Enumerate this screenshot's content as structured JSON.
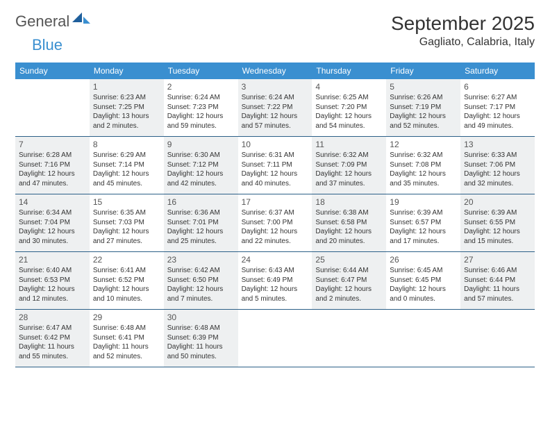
{
  "logo": {
    "text_general": "General",
    "text_blue": "Blue"
  },
  "title": {
    "month_year": "September 2025",
    "location": "Gagliato, Calabria, Italy"
  },
  "colors": {
    "header_bg": "#3a8fd0",
    "header_text": "#ffffff",
    "row_divider": "#2b5f87",
    "shaded_cell": "#eef0f1",
    "body_text": "#333333",
    "page_bg": "#ffffff"
  },
  "weekdays": [
    "Sunday",
    "Monday",
    "Tuesday",
    "Wednesday",
    "Thursday",
    "Friday",
    "Saturday"
  ],
  "weeks": [
    [
      {
        "day": "",
        "sunrise": "",
        "sunset": "",
        "daylight1": "",
        "daylight2": "",
        "shaded": false,
        "empty": true
      },
      {
        "day": "1",
        "sunrise": "Sunrise: 6:23 AM",
        "sunset": "Sunset: 7:25 PM",
        "daylight1": "Daylight: 13 hours",
        "daylight2": "and 2 minutes.",
        "shaded": true
      },
      {
        "day": "2",
        "sunrise": "Sunrise: 6:24 AM",
        "sunset": "Sunset: 7:23 PM",
        "daylight1": "Daylight: 12 hours",
        "daylight2": "and 59 minutes.",
        "shaded": false
      },
      {
        "day": "3",
        "sunrise": "Sunrise: 6:24 AM",
        "sunset": "Sunset: 7:22 PM",
        "daylight1": "Daylight: 12 hours",
        "daylight2": "and 57 minutes.",
        "shaded": true
      },
      {
        "day": "4",
        "sunrise": "Sunrise: 6:25 AM",
        "sunset": "Sunset: 7:20 PM",
        "daylight1": "Daylight: 12 hours",
        "daylight2": "and 54 minutes.",
        "shaded": false
      },
      {
        "day": "5",
        "sunrise": "Sunrise: 6:26 AM",
        "sunset": "Sunset: 7:19 PM",
        "daylight1": "Daylight: 12 hours",
        "daylight2": "and 52 minutes.",
        "shaded": true
      },
      {
        "day": "6",
        "sunrise": "Sunrise: 6:27 AM",
        "sunset": "Sunset: 7:17 PM",
        "daylight1": "Daylight: 12 hours",
        "daylight2": "and 49 minutes.",
        "shaded": false
      }
    ],
    [
      {
        "day": "7",
        "sunrise": "Sunrise: 6:28 AM",
        "sunset": "Sunset: 7:16 PM",
        "daylight1": "Daylight: 12 hours",
        "daylight2": "and 47 minutes.",
        "shaded": true
      },
      {
        "day": "8",
        "sunrise": "Sunrise: 6:29 AM",
        "sunset": "Sunset: 7:14 PM",
        "daylight1": "Daylight: 12 hours",
        "daylight2": "and 45 minutes.",
        "shaded": false
      },
      {
        "day": "9",
        "sunrise": "Sunrise: 6:30 AM",
        "sunset": "Sunset: 7:12 PM",
        "daylight1": "Daylight: 12 hours",
        "daylight2": "and 42 minutes.",
        "shaded": true
      },
      {
        "day": "10",
        "sunrise": "Sunrise: 6:31 AM",
        "sunset": "Sunset: 7:11 PM",
        "daylight1": "Daylight: 12 hours",
        "daylight2": "and 40 minutes.",
        "shaded": false
      },
      {
        "day": "11",
        "sunrise": "Sunrise: 6:32 AM",
        "sunset": "Sunset: 7:09 PM",
        "daylight1": "Daylight: 12 hours",
        "daylight2": "and 37 minutes.",
        "shaded": true
      },
      {
        "day": "12",
        "sunrise": "Sunrise: 6:32 AM",
        "sunset": "Sunset: 7:08 PM",
        "daylight1": "Daylight: 12 hours",
        "daylight2": "and 35 minutes.",
        "shaded": false
      },
      {
        "day": "13",
        "sunrise": "Sunrise: 6:33 AM",
        "sunset": "Sunset: 7:06 PM",
        "daylight1": "Daylight: 12 hours",
        "daylight2": "and 32 minutes.",
        "shaded": true
      }
    ],
    [
      {
        "day": "14",
        "sunrise": "Sunrise: 6:34 AM",
        "sunset": "Sunset: 7:04 PM",
        "daylight1": "Daylight: 12 hours",
        "daylight2": "and 30 minutes.",
        "shaded": true
      },
      {
        "day": "15",
        "sunrise": "Sunrise: 6:35 AM",
        "sunset": "Sunset: 7:03 PM",
        "daylight1": "Daylight: 12 hours",
        "daylight2": "and 27 minutes.",
        "shaded": false
      },
      {
        "day": "16",
        "sunrise": "Sunrise: 6:36 AM",
        "sunset": "Sunset: 7:01 PM",
        "daylight1": "Daylight: 12 hours",
        "daylight2": "and 25 minutes.",
        "shaded": true
      },
      {
        "day": "17",
        "sunrise": "Sunrise: 6:37 AM",
        "sunset": "Sunset: 7:00 PM",
        "daylight1": "Daylight: 12 hours",
        "daylight2": "and 22 minutes.",
        "shaded": false
      },
      {
        "day": "18",
        "sunrise": "Sunrise: 6:38 AM",
        "sunset": "Sunset: 6:58 PM",
        "daylight1": "Daylight: 12 hours",
        "daylight2": "and 20 minutes.",
        "shaded": true
      },
      {
        "day": "19",
        "sunrise": "Sunrise: 6:39 AM",
        "sunset": "Sunset: 6:57 PM",
        "daylight1": "Daylight: 12 hours",
        "daylight2": "and 17 minutes.",
        "shaded": false
      },
      {
        "day": "20",
        "sunrise": "Sunrise: 6:39 AM",
        "sunset": "Sunset: 6:55 PM",
        "daylight1": "Daylight: 12 hours",
        "daylight2": "and 15 minutes.",
        "shaded": true
      }
    ],
    [
      {
        "day": "21",
        "sunrise": "Sunrise: 6:40 AM",
        "sunset": "Sunset: 6:53 PM",
        "daylight1": "Daylight: 12 hours",
        "daylight2": "and 12 minutes.",
        "shaded": true
      },
      {
        "day": "22",
        "sunrise": "Sunrise: 6:41 AM",
        "sunset": "Sunset: 6:52 PM",
        "daylight1": "Daylight: 12 hours",
        "daylight2": "and 10 minutes.",
        "shaded": false
      },
      {
        "day": "23",
        "sunrise": "Sunrise: 6:42 AM",
        "sunset": "Sunset: 6:50 PM",
        "daylight1": "Daylight: 12 hours",
        "daylight2": "and 7 minutes.",
        "shaded": true
      },
      {
        "day": "24",
        "sunrise": "Sunrise: 6:43 AM",
        "sunset": "Sunset: 6:49 PM",
        "daylight1": "Daylight: 12 hours",
        "daylight2": "and 5 minutes.",
        "shaded": false
      },
      {
        "day": "25",
        "sunrise": "Sunrise: 6:44 AM",
        "sunset": "Sunset: 6:47 PM",
        "daylight1": "Daylight: 12 hours",
        "daylight2": "and 2 minutes.",
        "shaded": true
      },
      {
        "day": "26",
        "sunrise": "Sunrise: 6:45 AM",
        "sunset": "Sunset: 6:45 PM",
        "daylight1": "Daylight: 12 hours",
        "daylight2": "and 0 minutes.",
        "shaded": false
      },
      {
        "day": "27",
        "sunrise": "Sunrise: 6:46 AM",
        "sunset": "Sunset: 6:44 PM",
        "daylight1": "Daylight: 11 hours",
        "daylight2": "and 57 minutes.",
        "shaded": true
      }
    ],
    [
      {
        "day": "28",
        "sunrise": "Sunrise: 6:47 AM",
        "sunset": "Sunset: 6:42 PM",
        "daylight1": "Daylight: 11 hours",
        "daylight2": "and 55 minutes.",
        "shaded": true
      },
      {
        "day": "29",
        "sunrise": "Sunrise: 6:48 AM",
        "sunset": "Sunset: 6:41 PM",
        "daylight1": "Daylight: 11 hours",
        "daylight2": "and 52 minutes.",
        "shaded": false
      },
      {
        "day": "30",
        "sunrise": "Sunrise: 6:48 AM",
        "sunset": "Sunset: 6:39 PM",
        "daylight1": "Daylight: 11 hours",
        "daylight2": "and 50 minutes.",
        "shaded": true
      },
      {
        "day": "",
        "sunrise": "",
        "sunset": "",
        "daylight1": "",
        "daylight2": "",
        "shaded": false,
        "empty": true
      },
      {
        "day": "",
        "sunrise": "",
        "sunset": "",
        "daylight1": "",
        "daylight2": "",
        "shaded": false,
        "empty": true
      },
      {
        "day": "",
        "sunrise": "",
        "sunset": "",
        "daylight1": "",
        "daylight2": "",
        "shaded": false,
        "empty": true
      },
      {
        "day": "",
        "sunrise": "",
        "sunset": "",
        "daylight1": "",
        "daylight2": "",
        "shaded": false,
        "empty": true
      }
    ]
  ]
}
